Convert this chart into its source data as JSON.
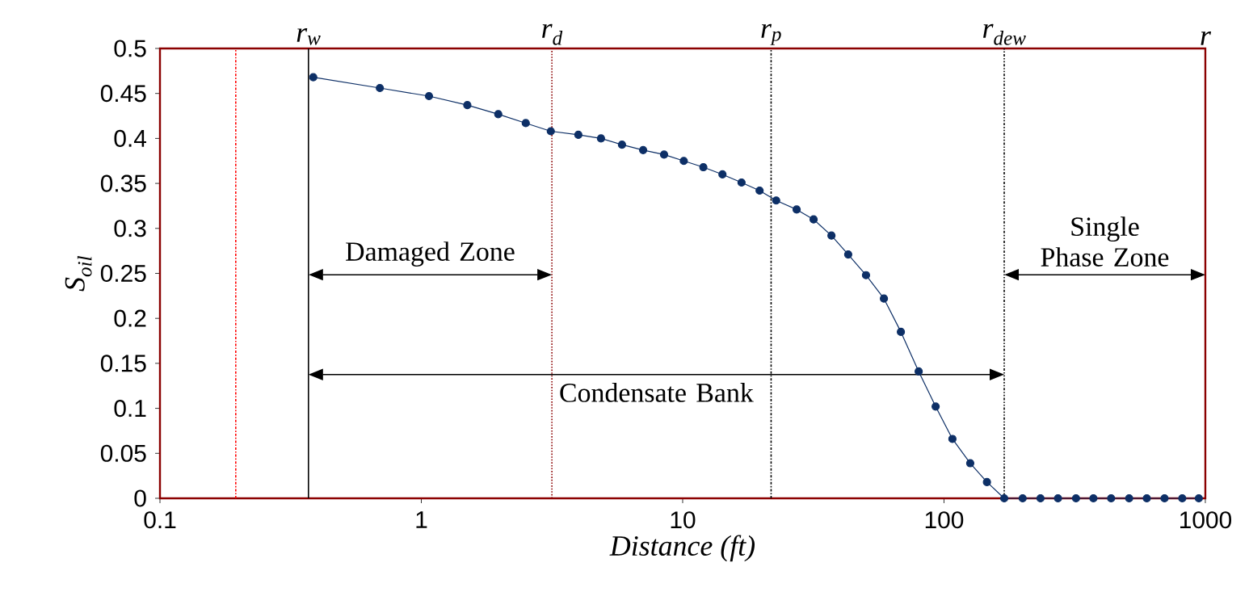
{
  "chart_data": {
    "type": "line",
    "xlabel": "Distance (ft)",
    "ylabel": "S$_{oil}$",
    "log": "x",
    "xlim": [
      0.1,
      1000
    ],
    "ylim": [
      0,
      0.5
    ],
    "xticks": [
      0.1,
      1,
      10,
      100,
      1000
    ],
    "yticks": [
      0,
      0.05,
      0.1,
      0.15,
      0.2,
      0.25,
      0.3,
      0.35,
      0.4,
      0.45,
      0.5
    ],
    "grid": false,
    "marker": "circle",
    "line_style": "solid",
    "series": [
      {
        "color": "#0d2f66",
        "x": [
          0.386,
          0.694,
          1.07,
          1.5,
          1.97,
          2.51,
          3.13,
          3.99,
          4.87,
          5.86,
          7.06,
          8.49,
          10.1,
          12.0,
          14.2,
          16.8,
          19.7,
          22.8,
          27.3,
          31.7,
          37.1,
          43.0,
          50.3,
          58.9,
          68.4,
          80.0,
          92.9,
          107.7,
          126,
          146,
          170,
          200,
          234,
          273,
          320,
          373,
          436,
          511,
          597,
          698,
          816,
          944
        ],
        "values": [
          0.468,
          0.456,
          0.447,
          0.437,
          0.427,
          0.417,
          0.408,
          0.404,
          0.4,
          0.393,
          0.387,
          0.382,
          0.375,
          0.368,
          0.36,
          0.351,
          0.342,
          0.331,
          0.321,
          0.31,
          0.292,
          0.271,
          0.248,
          0.222,
          0.185,
          0.141,
          0.102,
          0.066,
          0.039,
          0.018,
          0,
          0,
          0,
          0,
          0,
          0,
          0,
          0,
          0,
          0,
          0,
          0
        ]
      }
    ],
    "ref_lines": [
      {
        "axis": "x",
        "value": 0.195,
        "color": "#ff0000",
        "line_style": "dashdot"
      },
      {
        "axis": "x",
        "value": 0.37,
        "label": "r$_{w}$",
        "color": "#000000",
        "line_style": "solid"
      },
      {
        "axis": "x",
        "value": 3.16,
        "label": "r$_{d}$",
        "color": "#8b0000",
        "line_style": "dotted"
      },
      {
        "axis": "x",
        "value": 21.8,
        "label": "r$_{p}$",
        "color": "#000000",
        "line_style": "dashdot"
      },
      {
        "axis": "x",
        "value": 170,
        "label": "r$_{dew}$",
        "color": "#000000",
        "line_style": "dashdotdot"
      }
    ],
    "annotations": [
      "Damaged Zone",
      "Condensate Bank",
      "Single Phase Zone",
      "r"
    ]
  }
}
